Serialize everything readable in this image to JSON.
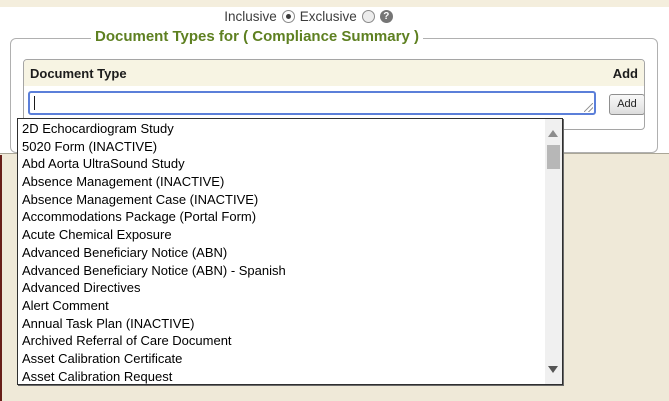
{
  "page": {
    "bg_color": "#efe9d8",
    "panel_color": "#ffffff",
    "accent_green": "#5e8021",
    "maroon_edge_color": "#671e18",
    "input_focus_border": "#5b7fd9"
  },
  "filter_bar": {
    "options": [
      {
        "label": "Inclusive",
        "selected": true
      },
      {
        "label": "Exclusive",
        "selected": false
      }
    ],
    "help_icon": "question-mark-circle"
  },
  "fieldset": {
    "legend": "Document Types for ( Compliance Summary )"
  },
  "table": {
    "header": {
      "document_type_label": "Document Type",
      "add_label": "Add"
    }
  },
  "document_type_input": {
    "value": "",
    "placeholder": "",
    "focused": true
  },
  "add_button": {
    "label": "Add"
  },
  "dropdown": {
    "items": [
      "2D Echocardiogram Study",
      "5020 Form (INACTIVE)",
      "Abd Aorta UltraSound Study",
      "Absence Management (INACTIVE)",
      "Absence Management Case (INACTIVE)",
      "Accommodations Package (Portal Form)",
      "Acute Chemical Exposure",
      "Advanced Beneficiary Notice (ABN)",
      "Advanced Beneficiary Notice (ABN) - Spanish",
      "Advanced Directives",
      "Alert Comment",
      "Annual Task Plan (INACTIVE)",
      "Archived Referral of Care Document",
      "Asset Calibration Certificate",
      "Asset Calibration Request"
    ],
    "scrollbar": {
      "up_icon": "triangle-up",
      "down_icon": "triangle-down"
    }
  }
}
